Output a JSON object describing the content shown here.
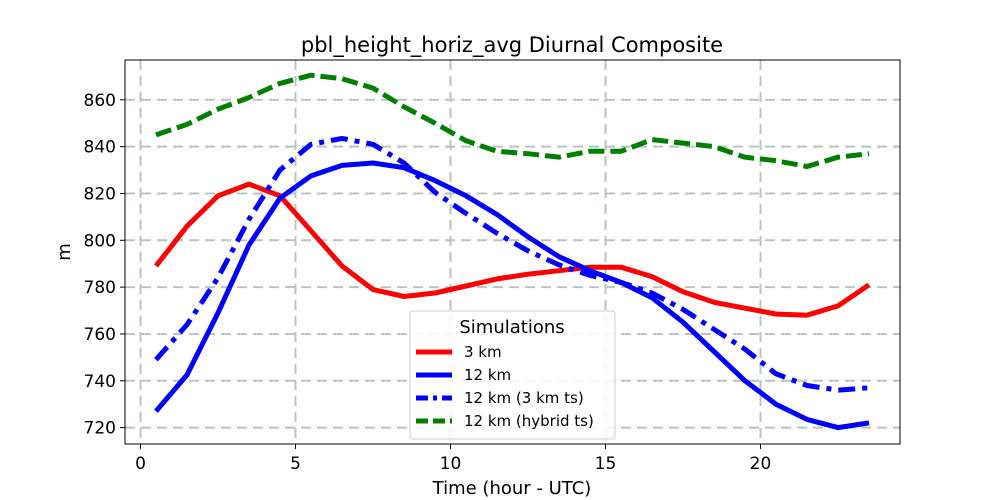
{
  "chart_data": {
    "type": "line",
    "title": "pbl_height_horiz_avg Diurnal Composite",
    "xlabel": "Time (hour - UTC)",
    "ylabel": "m",
    "xlim": [
      -0.5,
      24.5
    ],
    "ylim": [
      713,
      877
    ],
    "xticks": [
      0,
      5,
      10,
      15,
      20
    ],
    "yticks": [
      720,
      740,
      760,
      780,
      800,
      820,
      840,
      860
    ],
    "grid": true,
    "legend": {
      "title": "Simulations",
      "placement": "lower-center"
    },
    "x": [
      0.5,
      1.5,
      2.5,
      3.5,
      4.5,
      5.5,
      6.5,
      7.5,
      8.5,
      9.5,
      10.5,
      11.5,
      12.5,
      13.5,
      14.5,
      15.5,
      16.5,
      17.5,
      18.5,
      19.5,
      20.5,
      21.5,
      22.5,
      23.5
    ],
    "series": [
      {
        "name": "3 km",
        "color": "#ff0000",
        "dash": "solid",
        "values": [
          789,
          806,
          819,
          824,
          819,
          804,
          789,
          779,
          776,
          777.5,
          780.5,
          783.5,
          785.5,
          787,
          788.5,
          788.5,
          784.5,
          778,
          773.5,
          771,
          768.5,
          768,
          772,
          781
        ]
      },
      {
        "name": "12 km",
        "color": "#0000ff",
        "dash": "solid",
        "values": [
          727,
          742.5,
          769,
          798,
          818,
          827.5,
          832,
          833,
          831,
          825.5,
          819,
          811,
          801.5,
          793,
          787,
          782,
          775.5,
          765,
          752.5,
          740,
          730,
          723.5,
          720,
          722
        ]
      },
      {
        "name": "12 km (3 km ts)",
        "color": "#0000ff",
        "dash": "dashdot",
        "values": [
          749,
          764,
          784,
          809,
          830,
          841,
          843.5,
          841,
          833,
          820.5,
          811.5,
          803,
          795.5,
          789.5,
          785,
          782,
          777.5,
          770.5,
          762,
          753.5,
          743,
          738,
          736,
          737
        ]
      },
      {
        "name": "12 km (hybrid ts)",
        "color": "#008000",
        "dash": "dashed",
        "values": [
          845,
          849.5,
          856,
          861,
          867,
          870.5,
          869,
          865,
          857,
          850,
          842.5,
          838,
          837,
          835.5,
          838,
          838,
          843,
          841.5,
          840,
          835.5,
          834,
          831.5,
          835.5,
          837
        ]
      }
    ]
  }
}
